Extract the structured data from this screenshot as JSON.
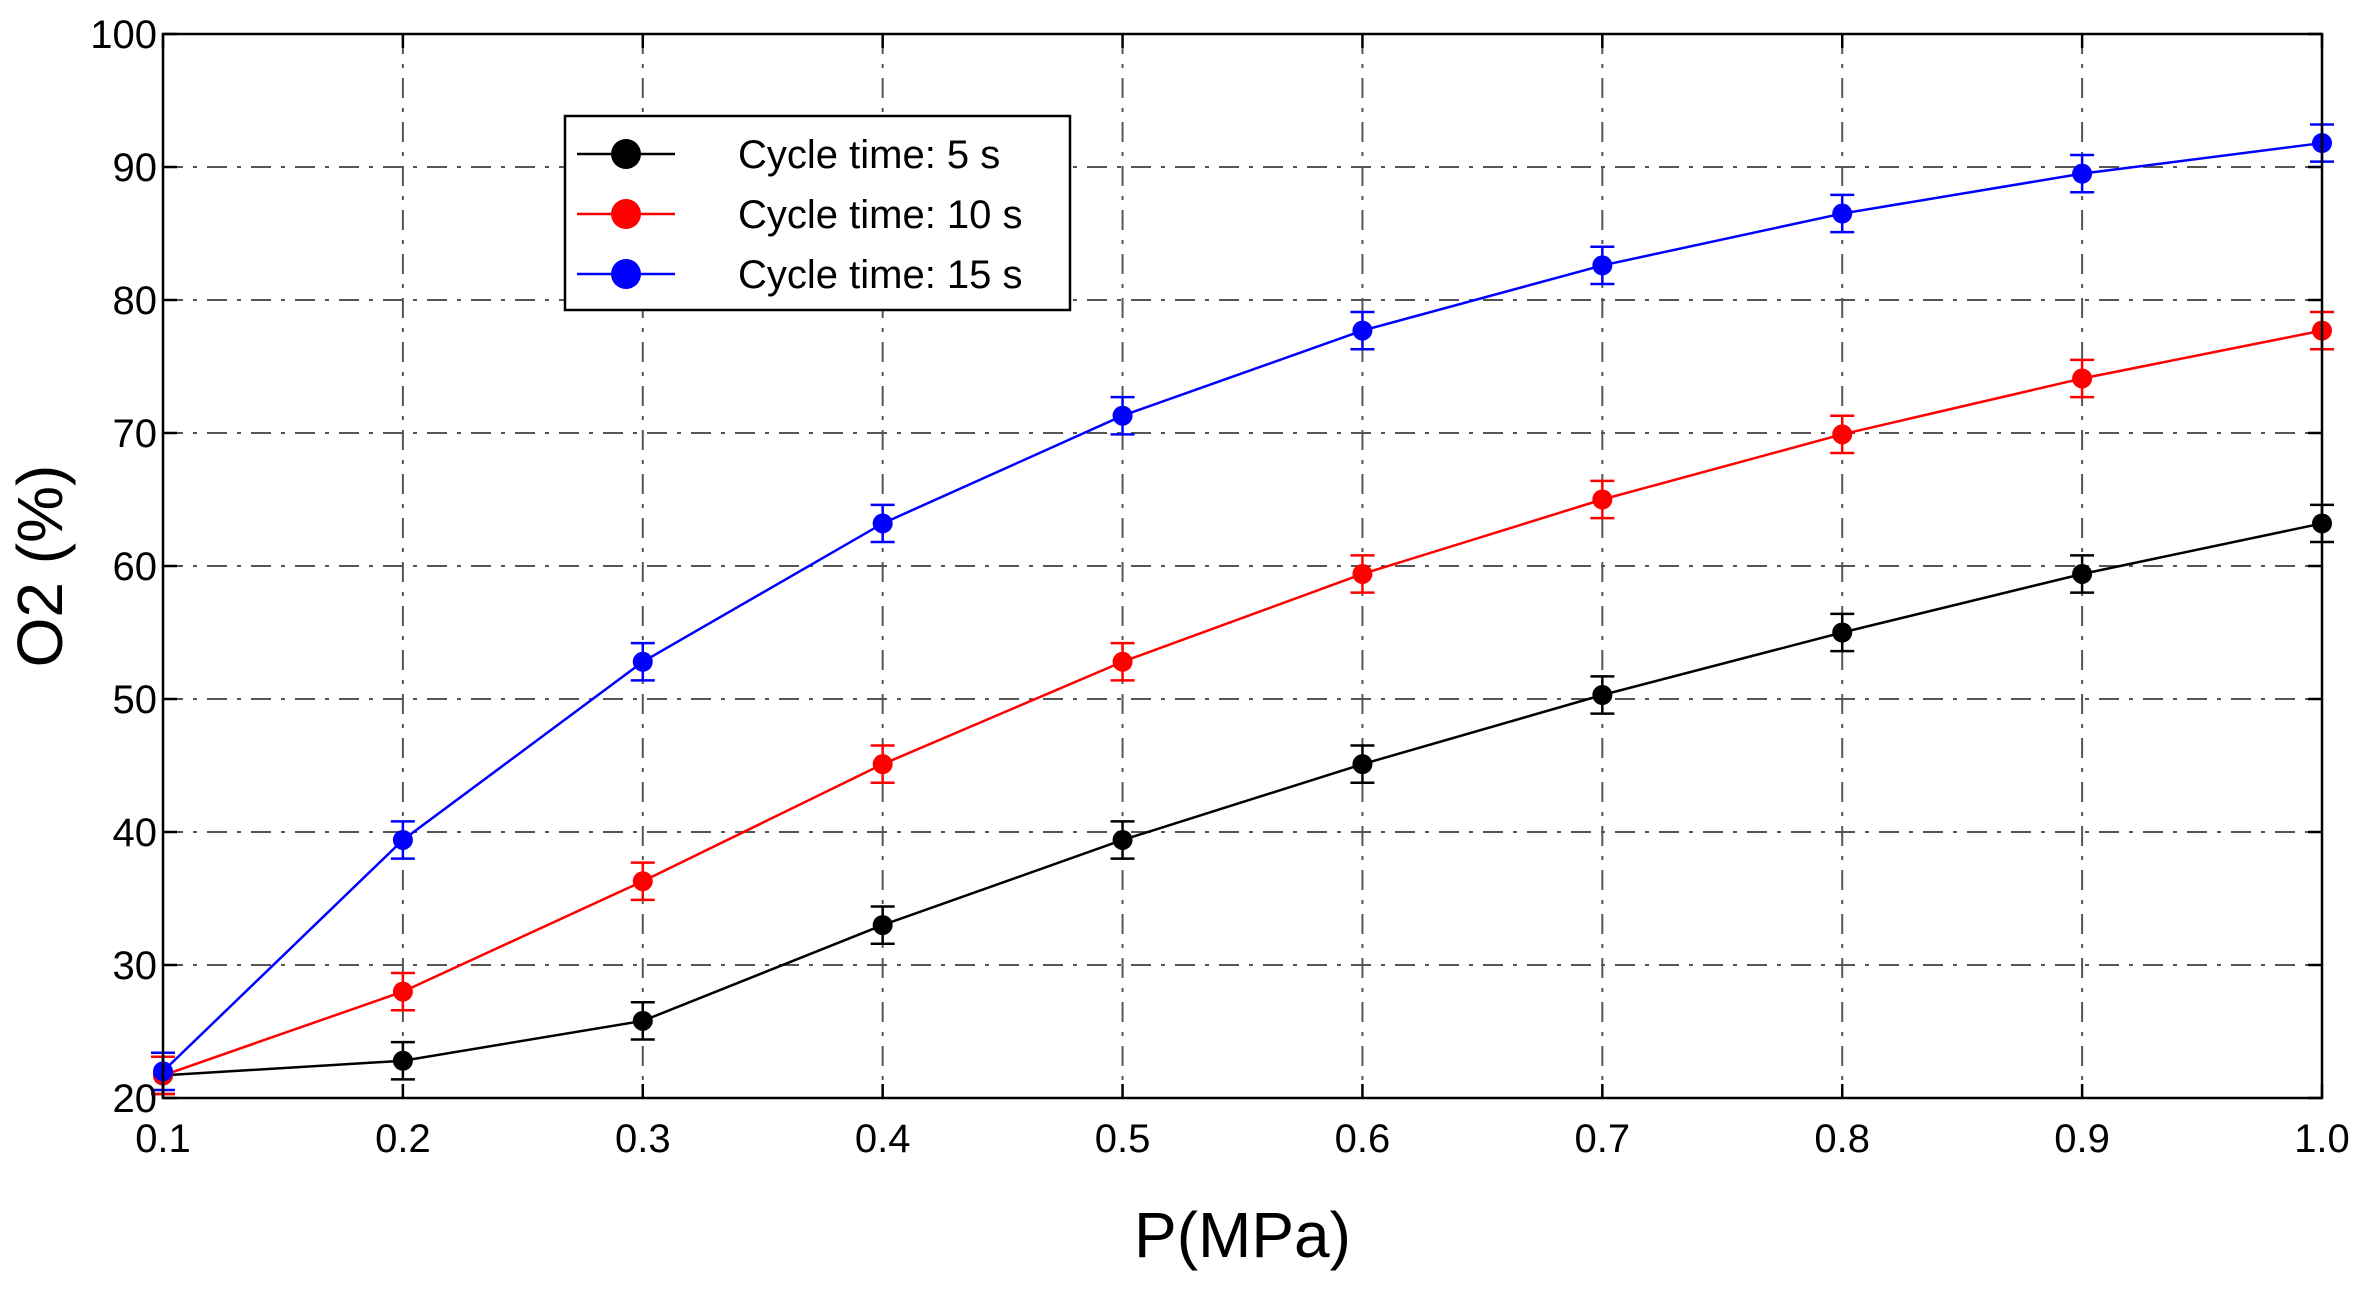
{
  "chart_data": {
    "type": "line",
    "title": "",
    "xlabel": "P(MPa)",
    "ylabel": "O2 (%)",
    "xlim": [
      0.1,
      1.0
    ],
    "ylim": [
      20,
      100
    ],
    "x": [
      0.1,
      0.2,
      0.3,
      0.4,
      0.5,
      0.6,
      0.7,
      0.8,
      0.9,
      1.0
    ],
    "x_tick_labels": [
      "0.1",
      "0.2",
      "0.3",
      "0.4",
      "0.5",
      "0.6",
      "0.7",
      "0.8",
      "0.9",
      "1.0"
    ],
    "y_ticks": [
      20,
      30,
      40,
      50,
      60,
      70,
      80,
      90,
      100
    ],
    "y_tick_labels": [
      "20",
      "30",
      "40",
      "50",
      "60",
      "70",
      "80",
      "90",
      "100"
    ],
    "grid": true,
    "legend_position": "top-left-inside",
    "error_bar": 1.4,
    "series": [
      {
        "name": "Cycle time: 5 s",
        "color": "#000000",
        "values": [
          21.7,
          22.8,
          25.8,
          33.0,
          39.4,
          45.1,
          50.3,
          55.0,
          59.4,
          63.2
        ]
      },
      {
        "name": "Cycle time: 10 s",
        "color": "#ff0000",
        "values": [
          21.7,
          28.0,
          36.3,
          45.1,
          52.8,
          59.4,
          65.0,
          69.9,
          74.1,
          77.7
        ]
      },
      {
        "name": "Cycle time: 15 s",
        "color": "#0000ff",
        "values": [
          22.0,
          39.4,
          52.8,
          63.2,
          71.3,
          77.7,
          82.6,
          86.5,
          89.5,
          91.8
        ]
      }
    ]
  }
}
